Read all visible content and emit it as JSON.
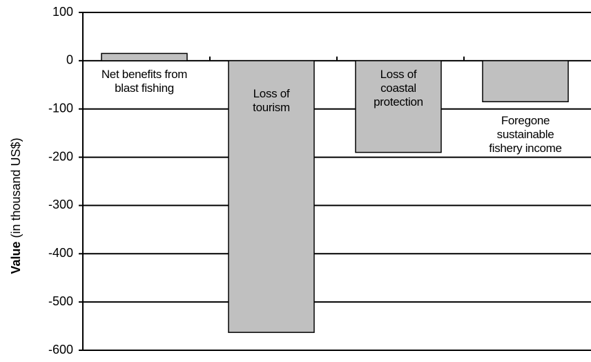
{
  "chart_data": {
    "type": "bar",
    "y_label_bold": "Value",
    "y_label": "(in thousand US$)",
    "categories": [
      "Net benefits from blast fishing",
      "Loss of tourism",
      "Loss of coastal protection",
      "Foregone sustainable fishery income"
    ],
    "values": [
      15,
      -563,
      -190,
      -85
    ],
    "color": "#c0c0c0",
    "ylim": [
      -600,
      100
    ],
    "yticks": [
      -600,
      -500,
      -400,
      -300,
      -200,
      -100,
      0,
      100
    ],
    "grid": true
  }
}
